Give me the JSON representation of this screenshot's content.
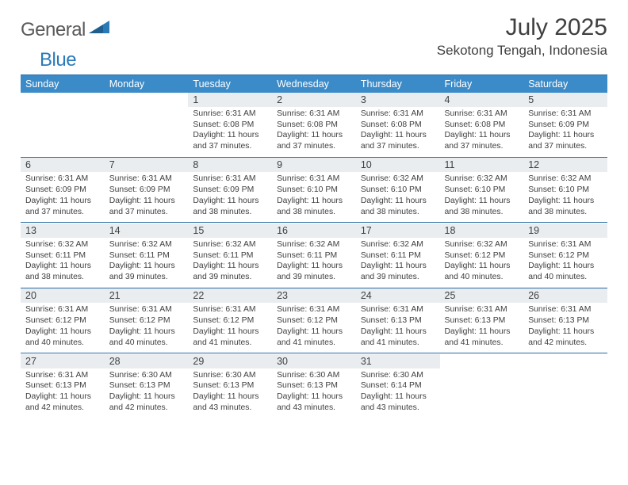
{
  "logo": {
    "general": "General",
    "blue": "Blue"
  },
  "title": "July 2025",
  "location": "Sekotong Tengah, Indonesia",
  "colors": {
    "header_bg": "#3b8bc8",
    "grid_line": "#2a6ca3",
    "daynum_bg": "#e9edf0",
    "text": "#404040",
    "logo_gray": "#5a5a5a",
    "logo_blue": "#2a7ab8"
  },
  "dow": [
    "Sunday",
    "Monday",
    "Tuesday",
    "Wednesday",
    "Thursday",
    "Friday",
    "Saturday"
  ],
  "weeks": [
    [
      null,
      null,
      {
        "n": "1",
        "sr": "Sunrise: 6:31 AM",
        "ss": "Sunset: 6:08 PM",
        "dl1": "Daylight: 11 hours",
        "dl2": "and 37 minutes."
      },
      {
        "n": "2",
        "sr": "Sunrise: 6:31 AM",
        "ss": "Sunset: 6:08 PM",
        "dl1": "Daylight: 11 hours",
        "dl2": "and 37 minutes."
      },
      {
        "n": "3",
        "sr": "Sunrise: 6:31 AM",
        "ss": "Sunset: 6:08 PM",
        "dl1": "Daylight: 11 hours",
        "dl2": "and 37 minutes."
      },
      {
        "n": "4",
        "sr": "Sunrise: 6:31 AM",
        "ss": "Sunset: 6:08 PM",
        "dl1": "Daylight: 11 hours",
        "dl2": "and 37 minutes."
      },
      {
        "n": "5",
        "sr": "Sunrise: 6:31 AM",
        "ss": "Sunset: 6:09 PM",
        "dl1": "Daylight: 11 hours",
        "dl2": "and 37 minutes."
      }
    ],
    [
      {
        "n": "6",
        "sr": "Sunrise: 6:31 AM",
        "ss": "Sunset: 6:09 PM",
        "dl1": "Daylight: 11 hours",
        "dl2": "and 37 minutes."
      },
      {
        "n": "7",
        "sr": "Sunrise: 6:31 AM",
        "ss": "Sunset: 6:09 PM",
        "dl1": "Daylight: 11 hours",
        "dl2": "and 37 minutes."
      },
      {
        "n": "8",
        "sr": "Sunrise: 6:31 AM",
        "ss": "Sunset: 6:09 PM",
        "dl1": "Daylight: 11 hours",
        "dl2": "and 38 minutes."
      },
      {
        "n": "9",
        "sr": "Sunrise: 6:31 AM",
        "ss": "Sunset: 6:10 PM",
        "dl1": "Daylight: 11 hours",
        "dl2": "and 38 minutes."
      },
      {
        "n": "10",
        "sr": "Sunrise: 6:32 AM",
        "ss": "Sunset: 6:10 PM",
        "dl1": "Daylight: 11 hours",
        "dl2": "and 38 minutes."
      },
      {
        "n": "11",
        "sr": "Sunrise: 6:32 AM",
        "ss": "Sunset: 6:10 PM",
        "dl1": "Daylight: 11 hours",
        "dl2": "and 38 minutes."
      },
      {
        "n": "12",
        "sr": "Sunrise: 6:32 AM",
        "ss": "Sunset: 6:10 PM",
        "dl1": "Daylight: 11 hours",
        "dl2": "and 38 minutes."
      }
    ],
    [
      {
        "n": "13",
        "sr": "Sunrise: 6:32 AM",
        "ss": "Sunset: 6:11 PM",
        "dl1": "Daylight: 11 hours",
        "dl2": "and 38 minutes."
      },
      {
        "n": "14",
        "sr": "Sunrise: 6:32 AM",
        "ss": "Sunset: 6:11 PM",
        "dl1": "Daylight: 11 hours",
        "dl2": "and 39 minutes."
      },
      {
        "n": "15",
        "sr": "Sunrise: 6:32 AM",
        "ss": "Sunset: 6:11 PM",
        "dl1": "Daylight: 11 hours",
        "dl2": "and 39 minutes."
      },
      {
        "n": "16",
        "sr": "Sunrise: 6:32 AM",
        "ss": "Sunset: 6:11 PM",
        "dl1": "Daylight: 11 hours",
        "dl2": "and 39 minutes."
      },
      {
        "n": "17",
        "sr": "Sunrise: 6:32 AM",
        "ss": "Sunset: 6:11 PM",
        "dl1": "Daylight: 11 hours",
        "dl2": "and 39 minutes."
      },
      {
        "n": "18",
        "sr": "Sunrise: 6:32 AM",
        "ss": "Sunset: 6:12 PM",
        "dl1": "Daylight: 11 hours",
        "dl2": "and 40 minutes."
      },
      {
        "n": "19",
        "sr": "Sunrise: 6:31 AM",
        "ss": "Sunset: 6:12 PM",
        "dl1": "Daylight: 11 hours",
        "dl2": "and 40 minutes."
      }
    ],
    [
      {
        "n": "20",
        "sr": "Sunrise: 6:31 AM",
        "ss": "Sunset: 6:12 PM",
        "dl1": "Daylight: 11 hours",
        "dl2": "and 40 minutes."
      },
      {
        "n": "21",
        "sr": "Sunrise: 6:31 AM",
        "ss": "Sunset: 6:12 PM",
        "dl1": "Daylight: 11 hours",
        "dl2": "and 40 minutes."
      },
      {
        "n": "22",
        "sr": "Sunrise: 6:31 AM",
        "ss": "Sunset: 6:12 PM",
        "dl1": "Daylight: 11 hours",
        "dl2": "and 41 minutes."
      },
      {
        "n": "23",
        "sr": "Sunrise: 6:31 AM",
        "ss": "Sunset: 6:12 PM",
        "dl1": "Daylight: 11 hours",
        "dl2": "and 41 minutes."
      },
      {
        "n": "24",
        "sr": "Sunrise: 6:31 AM",
        "ss": "Sunset: 6:13 PM",
        "dl1": "Daylight: 11 hours",
        "dl2": "and 41 minutes."
      },
      {
        "n": "25",
        "sr": "Sunrise: 6:31 AM",
        "ss": "Sunset: 6:13 PM",
        "dl1": "Daylight: 11 hours",
        "dl2": "and 41 minutes."
      },
      {
        "n": "26",
        "sr": "Sunrise: 6:31 AM",
        "ss": "Sunset: 6:13 PM",
        "dl1": "Daylight: 11 hours",
        "dl2": "and 42 minutes."
      }
    ],
    [
      {
        "n": "27",
        "sr": "Sunrise: 6:31 AM",
        "ss": "Sunset: 6:13 PM",
        "dl1": "Daylight: 11 hours",
        "dl2": "and 42 minutes."
      },
      {
        "n": "28",
        "sr": "Sunrise: 6:30 AM",
        "ss": "Sunset: 6:13 PM",
        "dl1": "Daylight: 11 hours",
        "dl2": "and 42 minutes."
      },
      {
        "n": "29",
        "sr": "Sunrise: 6:30 AM",
        "ss": "Sunset: 6:13 PM",
        "dl1": "Daylight: 11 hours",
        "dl2": "and 43 minutes."
      },
      {
        "n": "30",
        "sr": "Sunrise: 6:30 AM",
        "ss": "Sunset: 6:13 PM",
        "dl1": "Daylight: 11 hours",
        "dl2": "and 43 minutes."
      },
      {
        "n": "31",
        "sr": "Sunrise: 6:30 AM",
        "ss": "Sunset: 6:14 PM",
        "dl1": "Daylight: 11 hours",
        "dl2": "and 43 minutes."
      },
      null,
      null
    ]
  ]
}
